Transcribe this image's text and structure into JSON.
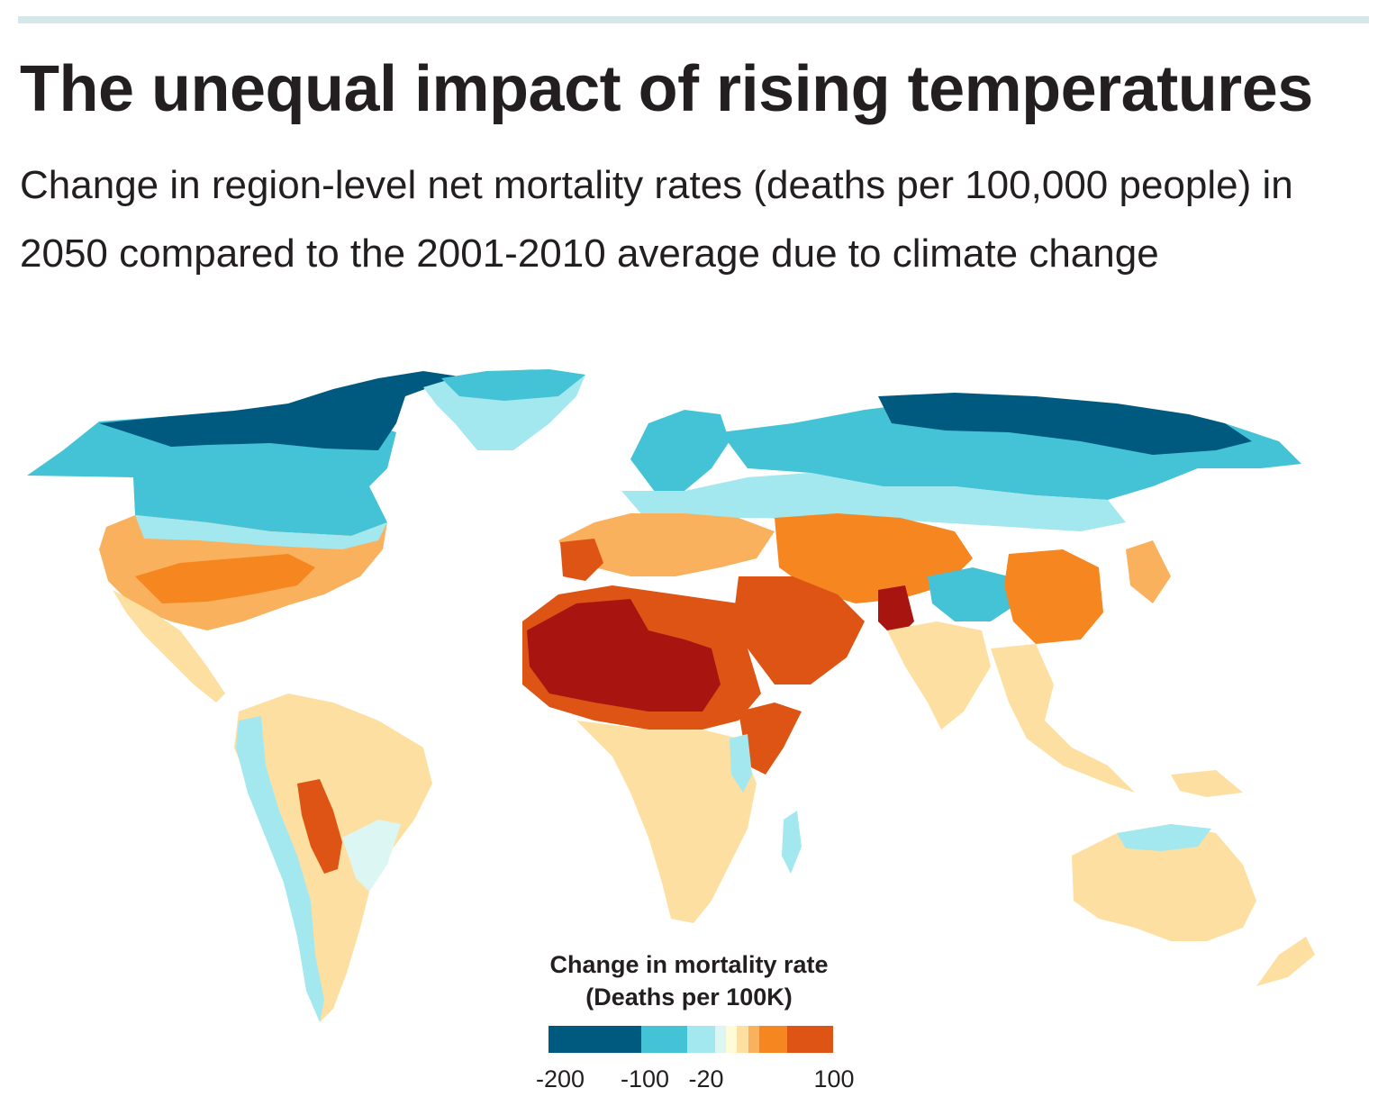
{
  "title": "The unequal impact of rising temperatures",
  "subtitle": "Change in region-level net mortality rates (deaths per 100,000 people) in 2050 compared to the 2001-2010 average due to climate change",
  "legend": {
    "title_line1": "Change in mortality rate",
    "title_line2": "(Deaths per 100K)",
    "ticks": [
      "-200",
      "-100",
      "-20",
      "100"
    ],
    "bins": [
      {
        "from": -200,
        "to": -100,
        "color": "#005a80"
      },
      {
        "from": -100,
        "to": -50,
        "color": "#45c3d6"
      },
      {
        "from": -50,
        "to": -20,
        "color": "#a3e8ef"
      },
      {
        "from": -20,
        "to": -10,
        "color": "#dcf7f3"
      },
      {
        "from": -10,
        "to": 0,
        "color": "#fefbd8"
      },
      {
        "from": 0,
        "to": 10,
        "color": "#fde0a1"
      },
      {
        "from": 10,
        "to": 20,
        "color": "#f9b15e"
      },
      {
        "from": 20,
        "to": 50,
        "color": "#f6861f"
      },
      {
        "from": 50,
        "to": 100,
        "color": "#de5414"
      }
    ]
  },
  "colors": {
    "very_high": "#a8140f",
    "high": "#de5414",
    "moderate": "#f6861f",
    "low": "#f9b15e",
    "slight": "#fde0a1",
    "neutral": "#fefbd8",
    "slight_decrease": "#dcf7f3",
    "decrease": "#a3e8ef",
    "strong_decrease": "#45c3d6",
    "very_strong_decrease": "#005a80"
  }
}
